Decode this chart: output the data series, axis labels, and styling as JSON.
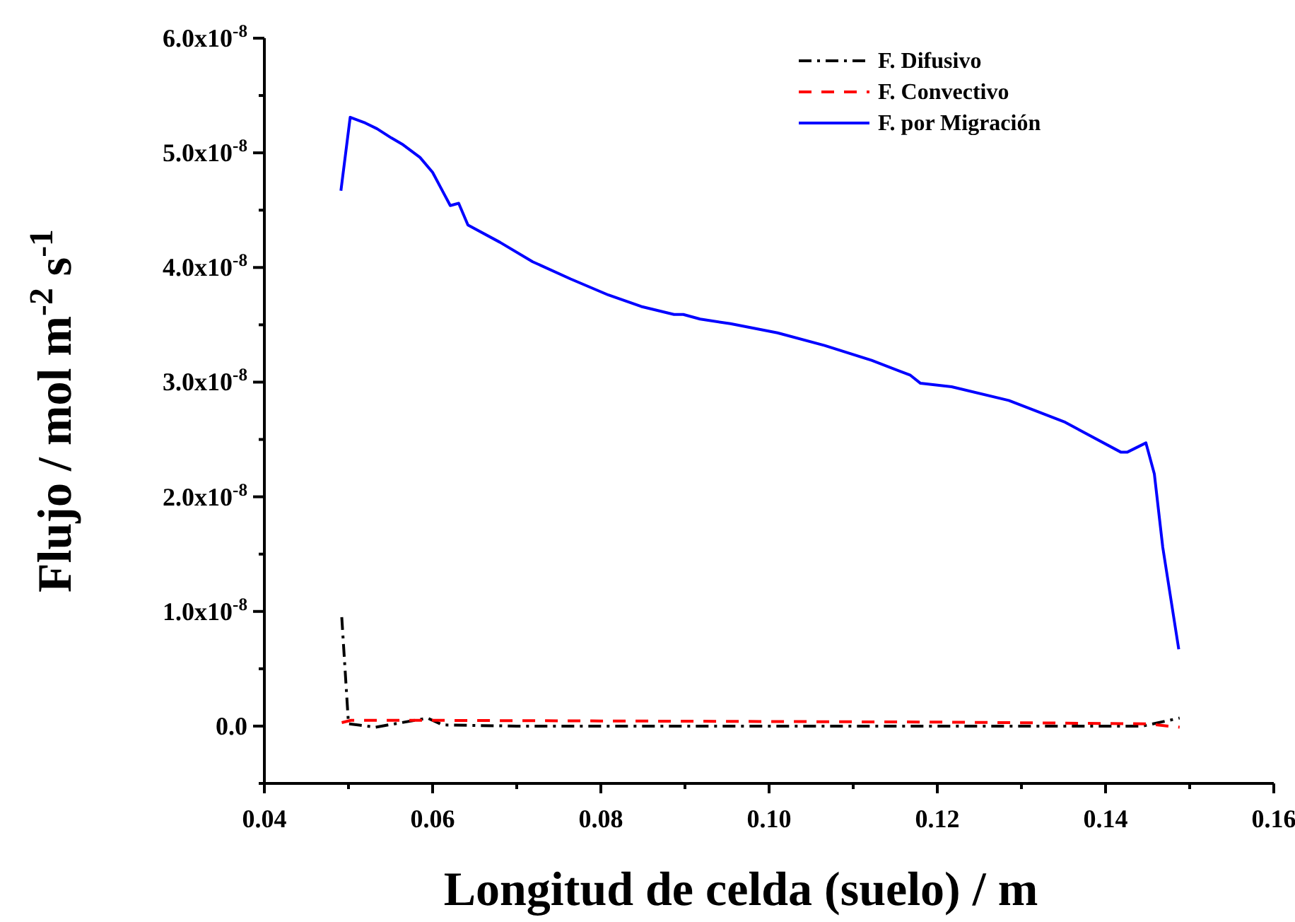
{
  "chart_data": {
    "type": "line",
    "xlabel": "Longitud de celda (suelo) / m",
    "ylabel": "Flujo / mol m$^{-2}$ s$^{-1}$",
    "xlim": [
      0.04,
      0.16
    ],
    "xticks": [
      0.04,
      {
        "value": 0.05,
        "label": null
      },
      0.06,
      {
        "value": 0.07,
        "label": null
      },
      0.08,
      {
        "value": 0.09,
        "label": null
      },
      "0.10",
      {
        "value": 0.11,
        "label": null
      },
      0.12,
      {
        "value": 0.13,
        "label": null
      },
      0.14,
      {
        "value": 0.15,
        "label": null
      },
      0.16
    ],
    "ylim": [
      -5e-09,
      6e-08
    ],
    "yticks": [
      {
        "value": -5e-09,
        "label": null
      },
      {
        "value": 0,
        "label": "0.0"
      },
      {
        "value": 5e-09,
        "label": null
      },
      {
        "value": 1e-08,
        "label": "1.0x10$^{-8}$"
      },
      {
        "value": 1.5e-08,
        "label": null
      },
      {
        "value": 2e-08,
        "label": "2.0x10$^{-8}$"
      },
      {
        "value": 2.5e-08,
        "label": null
      },
      {
        "value": 3e-08,
        "label": "3.0x10$^{-8}$"
      },
      {
        "value": 3.5e-08,
        "label": null
      },
      {
        "value": 4e-08,
        "label": "4.0x10$^{-8}$"
      },
      {
        "value": 4.5e-08,
        "label": null
      },
      {
        "value": 5e-08,
        "label": "5.0x10$^{-8}$"
      },
      {
        "value": 5.5e-08,
        "label": null
      },
      {
        "value": 6e-08,
        "label": "6.0x10$^{-8}$"
      }
    ],
    "grid": false,
    "legend": "top right",
    "marker": "none",
    "series": [
      {
        "name": "F. Difusivo",
        "color": "#000000",
        "line_style": "dashdot",
        "x": [
          0.0492,
          0.05,
          0.0532,
          0.0594,
          0.0612,
          0.07,
          0.08,
          0.09,
          0.1,
          0.11,
          0.12,
          0.13,
          0.1444,
          0.1488
        ],
        "values": [
          9.5e-09,
          2e-10,
          -1e-10,
          7e-10,
          1e-10,
          0,
          0,
          0,
          0,
          0,
          0,
          0,
          0,
          7e-10
        ]
      },
      {
        "name": "F. Convectivo",
        "color": "#ff0000",
        "line_style": "dashed",
        "x": [
          0.0492,
          0.0503,
          0.06,
          0.08,
          0.1,
          0.12,
          0.1448,
          0.1488
        ],
        "values": [
          3e-10,
          5e-10,
          5e-10,
          4.5e-10,
          4e-10,
          3.5e-10,
          2e-10,
          -1e-10
        ]
      },
      {
        "name": "F. por Migración",
        "color": "#0000ff",
        "line_style": "solid",
        "x": [
          0.0491,
          0.0502,
          0.052,
          0.0534,
          0.0551,
          0.0565,
          0.0585,
          0.06,
          0.0613,
          0.0621,
          0.0631,
          0.0642,
          0.068,
          0.0719,
          0.0764,
          0.0809,
          0.0848,
          0.0887,
          0.0898,
          0.0918,
          0.0954,
          0.0982,
          0.101,
          0.1066,
          0.1122,
          0.1168,
          0.118,
          0.1217,
          0.1285,
          0.1352,
          0.1418,
          0.1426,
          0.1448,
          0.1458,
          0.1468,
          0.1487
        ],
        "values": [
          4.67e-08,
          5.31e-08,
          5.26e-08,
          5.21e-08,
          5.13e-08,
          5.07e-08,
          4.96e-08,
          4.83e-08,
          4.65e-08,
          4.54e-08,
          4.56e-08,
          4.37e-08,
          4.22e-08,
          4.05e-08,
          3.9e-08,
          3.76e-08,
          3.66e-08,
          3.59e-08,
          3.59e-08,
          3.55e-08,
          3.51e-08,
          3.47e-08,
          3.43e-08,
          3.32e-08,
          3.19e-08,
          3.06e-08,
          2.99e-08,
          2.96e-08,
          2.84e-08,
          2.65e-08,
          2.39e-08,
          2.39e-08,
          2.47e-08,
          2.2e-08,
          1.56e-08,
          6.7e-09
        ]
      }
    ]
  }
}
